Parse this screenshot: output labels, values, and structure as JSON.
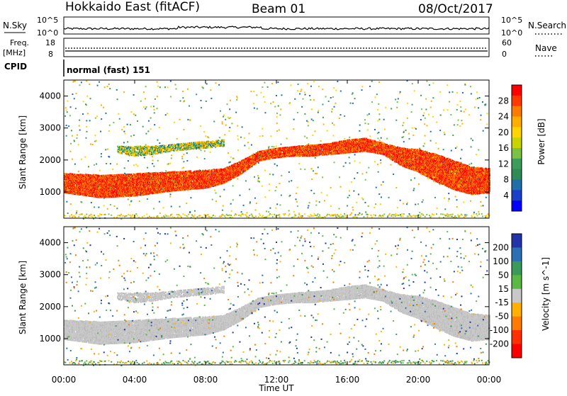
{
  "header": {
    "title": "Hokkaido East (fitACF)",
    "beam": "Beam 01",
    "date": "08/Oct/2017"
  },
  "top_panels": {
    "nsky_label": "N.Sky",
    "nsky_top": "10^5",
    "nsky_bottom": "10^0",
    "nsearch_label": "N.Search",
    "nsearch_top": "10^5",
    "nsearch_bottom": "10^0",
    "freq_label": "Freq.",
    "freq_unit": "[MHz]",
    "freq_top": "18",
    "freq_bottom": "8",
    "nave_label": "Nave",
    "nave_top": "60",
    "nave_bottom": "0",
    "cpid_label": "CPID",
    "cpid_text": "normal (fast) 151"
  },
  "chart_data": [
    {
      "type": "heatmap",
      "panel": "power",
      "ylabel": "Slant Range [km]",
      "colorbar_label": "Power [dB]",
      "colorbar_ticks": [
        "28",
        "24",
        "20",
        "16",
        "12",
        "8",
        "4"
      ],
      "colorbar_colors": [
        "#ff0000",
        "#ff3a00",
        "#ff7a00",
        "#ffae00",
        "#ffd400",
        "#c8d400",
        "#7bc242",
        "#3c9c5a",
        "#2e8b57",
        "#1f6fa8",
        "#1a3fc8",
        "#0000ff"
      ],
      "yticks": [
        "1000",
        "2000",
        "3000",
        "4000"
      ],
      "ylim": [
        180,
        4500
      ],
      "xlim": [
        "00:00",
        "24:00"
      ],
      "xticks": [
        "00:00",
        "04:00",
        "08:00",
        "12:00",
        "16:00",
        "20:00",
        "00:00"
      ],
      "band_main": {
        "t": [
          0,
          2,
          4,
          6,
          8,
          9,
          10,
          11,
          12,
          13,
          14,
          15,
          16,
          17,
          18,
          19,
          20,
          21,
          22,
          23,
          24
        ],
        "lower_km": [
          1000,
          850,
          900,
          1050,
          1150,
          1300,
          1600,
          2000,
          2100,
          2150,
          2150,
          2200,
          2250,
          2300,
          2200,
          1850,
          1650,
          1350,
          1100,
          950,
          1000
        ],
        "upper_km": [
          1600,
          1550,
          1600,
          1650,
          1700,
          1750,
          2000,
          2300,
          2400,
          2450,
          2500,
          2550,
          2650,
          2700,
          2550,
          2400,
          2350,
          2200,
          2000,
          1800,
          1750
        ]
      },
      "band_upper": {
        "t": [
          3,
          4,
          5,
          6,
          7,
          8,
          9
        ],
        "lower_km": [
          2250,
          2150,
          2200,
          2300,
          2350,
          2400,
          2450
        ],
        "upper_km": [
          2450,
          2450,
          2450,
          2500,
          2550,
          2600,
          2650
        ]
      }
    },
    {
      "type": "heatmap",
      "panel": "velocity",
      "ylabel": "Slant Range [km]",
      "colorbar_label": "Velocity [m s^-1]",
      "colorbar_ticks": [
        "200",
        "100",
        "50",
        "15",
        "-15",
        "-50",
        "-100",
        "-200"
      ],
      "colorbar_colors": [
        "#2233aa",
        "#2d6fb5",
        "#3a9a5a",
        "#5ab845",
        "#c8c8c8",
        "#ffb000",
        "#ff7a00",
        "#ff3000",
        "#ff0000"
      ],
      "yticks": [
        "1000",
        "2000",
        "3000",
        "4000"
      ],
      "ylim": [
        180,
        4500
      ],
      "xlim": [
        "00:00",
        "24:00"
      ],
      "xticks": [
        "00:00",
        "04:00",
        "08:00",
        "12:00",
        "16:00",
        "20:00",
        "00:00"
      ],
      "xlabel": "Time UT"
    }
  ]
}
